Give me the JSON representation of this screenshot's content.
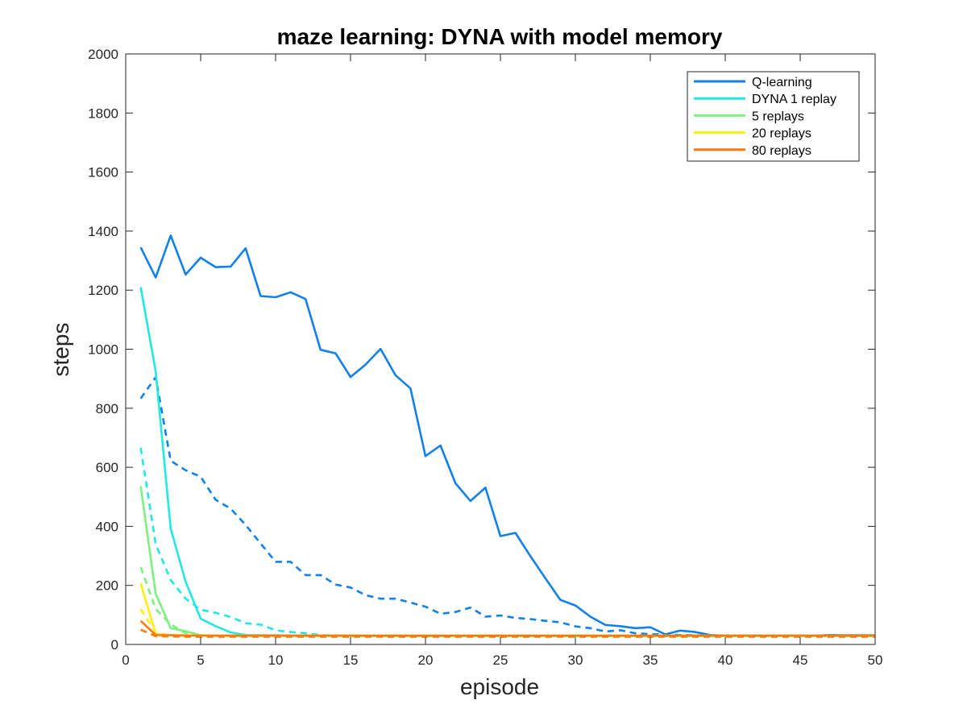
{
  "chart_data": {
    "type": "line",
    "title": "maze learning: DYNA with model memory",
    "xlabel": "episode",
    "ylabel": "steps",
    "xlim": [
      0,
      50
    ],
    "ylim": [
      0,
      2000
    ],
    "xticks": [
      0,
      5,
      10,
      15,
      20,
      25,
      30,
      35,
      40,
      45,
      50
    ],
    "yticks": [
      0,
      200,
      400,
      600,
      800,
      1000,
      1200,
      1400,
      1600,
      1800,
      2000
    ],
    "grid": false,
    "legend_position": "top-right",
    "series": [
      {
        "name": "Q-learning",
        "color": "#1180ea",
        "style": "solid",
        "x": [
          1,
          2,
          3,
          4,
          5,
          6,
          7,
          8,
          9,
          10,
          11,
          12,
          13,
          14,
          15,
          16,
          17,
          18,
          19,
          20,
          21,
          22,
          23,
          24,
          25,
          26,
          27,
          28,
          29,
          30,
          31,
          32,
          33,
          34,
          35,
          36,
          37,
          38,
          39,
          40,
          41,
          42,
          43,
          44,
          45,
          46,
          47,
          48,
          49,
          50
        ],
        "values": [
          1345,
          1243,
          1385,
          1253,
          1310,
          1278,
          1280,
          1342,
          1180,
          1176,
          1193,
          1170,
          998,
          986,
          906,
          948,
          1001,
          912,
          867,
          638,
          674,
          546,
          486,
          531,
          367,
          378,
          299,
          224,
          151,
          132,
          94,
          66,
          62,
          55,
          58,
          34,
          47,
          42,
          32,
          30,
          30,
          30,
          30,
          30,
          30,
          30,
          32,
          31,
          31,
          31
        ]
      },
      {
        "name": "DYNA 1 replay",
        "color": "#23e7e3",
        "style": "solid",
        "x": [
          1,
          2,
          3,
          4,
          5,
          6,
          7,
          8,
          9,
          10,
          11,
          12,
          13,
          14,
          15,
          16,
          17,
          18,
          19,
          20,
          21,
          22,
          23,
          24,
          25,
          26,
          27,
          28,
          29,
          30,
          31,
          32,
          33,
          34,
          35,
          36,
          37,
          38,
          39,
          40,
          41,
          42,
          43,
          44,
          45,
          46,
          47,
          48,
          49,
          50
        ],
        "values": [
          1210,
          925,
          393,
          212,
          87,
          62,
          41,
          32,
          31,
          31,
          30,
          30,
          30,
          30,
          29,
          29,
          29,
          29,
          29,
          29,
          29,
          29,
          29,
          29,
          29,
          29,
          29,
          29,
          29,
          29,
          29,
          29,
          29,
          29,
          29,
          29,
          29,
          29,
          29,
          29,
          29,
          29,
          29,
          29,
          29,
          29,
          29,
          29,
          29,
          29
        ]
      },
      {
        "name": "5 replays",
        "color": "#7df07f",
        "style": "solid",
        "x": [
          1,
          2,
          3,
          4,
          5,
          6,
          7,
          8,
          9,
          10,
          11,
          12,
          13,
          14,
          15,
          16,
          17,
          18,
          19,
          20,
          21,
          22,
          23,
          24,
          25,
          26,
          27,
          28,
          29,
          30,
          31,
          32,
          33,
          34,
          35,
          36,
          37,
          38,
          39,
          40,
          41,
          42,
          43,
          44,
          45,
          46,
          47,
          48,
          49,
          50
        ],
        "values": [
          536,
          172,
          55,
          45,
          31,
          30,
          30,
          30,
          30,
          30,
          30,
          30,
          30,
          30,
          30,
          30,
          30,
          30,
          30,
          30,
          30,
          30,
          30,
          30,
          30,
          30,
          30,
          30,
          30,
          30,
          30,
          30,
          30,
          30,
          30,
          30,
          30,
          30,
          30,
          30,
          30,
          30,
          30,
          30,
          30,
          30,
          30,
          30,
          30,
          30
        ]
      },
      {
        "name": "20 replays",
        "color": "#ffee10",
        "style": "solid",
        "x": [
          1,
          2,
          3,
          4,
          5,
          6,
          7,
          8,
          9,
          10,
          11,
          12,
          13,
          14,
          15,
          16,
          17,
          18,
          19,
          20,
          21,
          22,
          23,
          24,
          25,
          26,
          27,
          28,
          29,
          30,
          31,
          32,
          33,
          34,
          35,
          36,
          37,
          38,
          39,
          40,
          41,
          42,
          43,
          44,
          45,
          46,
          47,
          48,
          49,
          50
        ],
        "values": [
          207,
          35,
          32,
          31,
          30,
          30,
          30,
          30,
          30,
          30,
          30,
          30,
          30,
          30,
          30,
          30,
          30,
          30,
          30,
          30,
          30,
          30,
          30,
          30,
          30,
          30,
          30,
          30,
          30,
          30,
          30,
          30,
          30,
          30,
          30,
          30,
          30,
          30,
          30,
          30,
          30,
          30,
          30,
          30,
          30,
          30,
          30,
          30,
          30,
          30
        ]
      },
      {
        "name": "80 replays",
        "color": "#f97a10",
        "style": "solid",
        "x": [
          1,
          2,
          3,
          4,
          5,
          6,
          7,
          8,
          9,
          10,
          11,
          12,
          13,
          14,
          15,
          16,
          17,
          18,
          19,
          20,
          21,
          22,
          23,
          24,
          25,
          26,
          27,
          28,
          29,
          30,
          31,
          32,
          33,
          34,
          35,
          36,
          37,
          38,
          39,
          40,
          41,
          42,
          43,
          44,
          45,
          46,
          47,
          48,
          49,
          50
        ],
        "values": [
          80,
          32,
          31,
          30,
          30,
          30,
          30,
          30,
          30,
          30,
          30,
          30,
          30,
          30,
          30,
          30,
          30,
          30,
          30,
          30,
          30,
          30,
          30,
          30,
          30,
          30,
          30,
          30,
          30,
          30,
          30,
          30,
          30,
          30,
          30,
          30,
          30,
          30,
          30,
          30,
          30,
          30,
          30,
          30,
          30,
          30,
          30,
          30,
          30,
          30
        ]
      },
      {
        "color": "#1180ea",
        "style": "dashed",
        "x": [
          1,
          2,
          3,
          4,
          5,
          6,
          7,
          8,
          9,
          10,
          11,
          12,
          13,
          14,
          15,
          16,
          17,
          18,
          19,
          20,
          21,
          22,
          23,
          24,
          25,
          26,
          27,
          28,
          29,
          30,
          31,
          32,
          33,
          34,
          35,
          36,
          37,
          38,
          39,
          40,
          41,
          42,
          43,
          44,
          45,
          46,
          47,
          48,
          49,
          50
        ],
        "values": [
          833,
          905,
          622,
          590,
          568,
          490,
          460,
          405,
          342,
          280,
          280,
          235,
          235,
          203,
          193,
          167,
          155,
          155,
          142,
          128,
          104,
          110,
          125,
          94,
          98,
          90,
          86,
          80,
          75,
          61,
          55,
          44,
          48,
          38,
          35,
          34,
          32,
          31,
          30,
          30,
          30,
          30,
          30,
          30,
          30,
          30,
          30,
          30,
          30,
          30
        ]
      },
      {
        "color": "#23e7e3",
        "style": "dashed",
        "x": [
          1,
          2,
          3,
          4,
          5,
          6,
          7,
          8,
          9,
          10,
          11,
          12,
          13,
          14,
          15,
          16,
          17,
          18,
          19,
          20,
          21,
          22,
          23,
          24,
          25,
          26,
          27,
          28,
          29,
          30,
          31,
          32,
          33,
          34,
          35,
          36,
          37,
          38,
          39,
          40,
          41,
          42,
          43,
          44,
          45,
          46,
          47,
          48,
          49,
          50
        ],
        "values": [
          666,
          340,
          218,
          155,
          118,
          107,
          93,
          72,
          67,
          48,
          42,
          38,
          32,
          30,
          30,
          29,
          28,
          28,
          28,
          28,
          28,
          28,
          28,
          28,
          28,
          28,
          28,
          28,
          28,
          28,
          28,
          28,
          28,
          28,
          28,
          28,
          28,
          28,
          28,
          28,
          28,
          28,
          28,
          28,
          28,
          28,
          28,
          28,
          28,
          28
        ]
      },
      {
        "color": "#7df07f",
        "style": "dashed",
        "x": [
          1,
          2,
          3,
          4,
          5,
          6,
          7,
          8,
          9,
          10,
          11,
          12,
          13,
          14,
          15,
          16,
          17,
          18,
          19,
          20,
          21,
          22,
          23,
          24,
          25,
          26,
          27,
          28,
          29,
          30,
          31,
          32,
          33,
          34,
          35,
          36,
          37,
          38,
          39,
          40,
          41,
          42,
          43,
          44,
          45,
          46,
          47,
          48,
          49,
          50
        ],
        "values": [
          262,
          120,
          68,
          38,
          30,
          29,
          28,
          28,
          28,
          28,
          28,
          28,
          28,
          28,
          28,
          28,
          28,
          28,
          28,
          28,
          28,
          28,
          28,
          28,
          28,
          28,
          28,
          28,
          28,
          28,
          28,
          28,
          28,
          28,
          28,
          28,
          28,
          28,
          28,
          28,
          28,
          28,
          28,
          28,
          28,
          28,
          28,
          28,
          28,
          28
        ]
      },
      {
        "color": "#ffee10",
        "style": "dashed",
        "x": [
          1,
          2,
          3,
          4,
          5,
          6,
          7,
          8,
          9,
          10,
          11,
          12,
          13,
          14,
          15,
          16,
          17,
          18,
          19,
          20,
          21,
          22,
          23,
          24,
          25,
          26,
          27,
          28,
          29,
          30,
          31,
          32,
          33,
          34,
          35,
          36,
          37,
          38,
          39,
          40,
          41,
          42,
          43,
          44,
          45,
          46,
          47,
          48,
          49,
          50
        ],
        "values": [
          120,
          40,
          30,
          28,
          28,
          28,
          28,
          28,
          28,
          28,
          28,
          28,
          28,
          28,
          28,
          28,
          28,
          28,
          28,
          28,
          28,
          28,
          28,
          28,
          28,
          28,
          28,
          28,
          28,
          28,
          28,
          28,
          28,
          28,
          28,
          28,
          28,
          28,
          28,
          28,
          28,
          28,
          28,
          28,
          28,
          28,
          28,
          28,
          28,
          28
        ]
      },
      {
        "color": "#f97a10",
        "style": "dashed",
        "x": [
          1,
          2,
          3,
          4,
          5,
          6,
          7,
          8,
          9,
          10,
          11,
          12,
          13,
          14,
          15,
          16,
          17,
          18,
          19,
          20,
          21,
          22,
          23,
          24,
          25,
          26,
          27,
          28,
          29,
          30,
          31,
          32,
          33,
          34,
          35,
          36,
          37,
          38,
          39,
          40,
          41,
          42,
          43,
          44,
          45,
          46,
          47,
          48,
          49,
          50
        ],
        "values": [
          50,
          28,
          27,
          26,
          26,
          26,
          26,
          26,
          26,
          26,
          26,
          26,
          26,
          26,
          26,
          26,
          26,
          26,
          26,
          26,
          26,
          26,
          26,
          26,
          26,
          26,
          26,
          26,
          26,
          26,
          26,
          26,
          26,
          26,
          26,
          26,
          26,
          26,
          26,
          26,
          26,
          26,
          26,
          26,
          26,
          26,
          26,
          26,
          26,
          26
        ]
      }
    ]
  }
}
